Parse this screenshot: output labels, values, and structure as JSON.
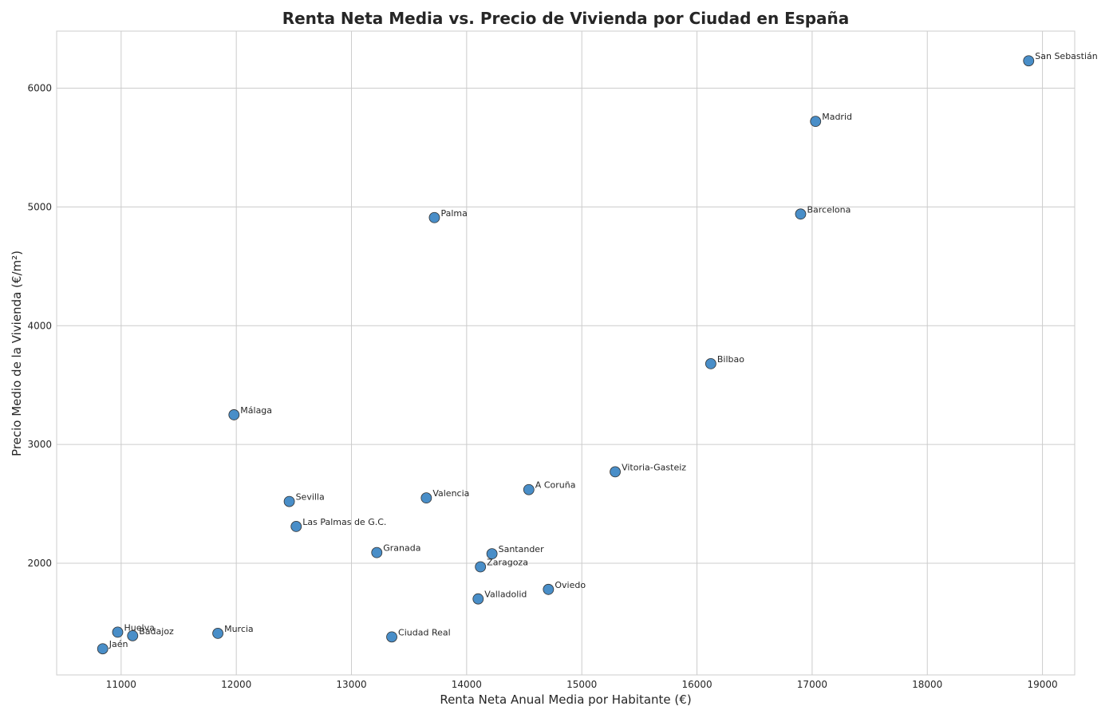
{
  "chart_data": {
    "type": "scatter",
    "title": "Renta Neta Media vs. Precio de Vivienda por Ciudad en España",
    "xlabel": "Renta Neta Anual Media por Habitante (€)",
    "ylabel": "Precio Medio de la Vivienda (€/m²)",
    "xlim": [
      10440,
      19280
    ],
    "ylim": [
      1060,
      6480
    ],
    "xticks": [
      11000,
      12000,
      13000,
      14000,
      15000,
      16000,
      17000,
      18000,
      19000
    ],
    "yticks": [
      2000,
      3000,
      4000,
      5000,
      6000
    ],
    "grid": true,
    "color": "#3f88c5",
    "points": [
      {
        "label": "San Sebastián",
        "x": 18880,
        "y": 6230
      },
      {
        "label": "Madrid",
        "x": 17030,
        "y": 5720
      },
      {
        "label": "Barcelona",
        "x": 16900,
        "y": 4940
      },
      {
        "label": "Palma",
        "x": 13720,
        "y": 4910
      },
      {
        "label": "Bilbao",
        "x": 16120,
        "y": 3680
      },
      {
        "label": "Málaga",
        "x": 11980,
        "y": 3250
      },
      {
        "label": "Vitoria-Gasteiz",
        "x": 15290,
        "y": 2770
      },
      {
        "label": "A Coruña",
        "x": 14540,
        "y": 2620
      },
      {
        "label": "Valencia",
        "x": 13650,
        "y": 2550
      },
      {
        "label": "Sevilla",
        "x": 12460,
        "y": 2520
      },
      {
        "label": "Las Palmas de G.C.",
        "x": 12520,
        "y": 2310
      },
      {
        "label": "Granada",
        "x": 13220,
        "y": 2090
      },
      {
        "label": "Santander",
        "x": 14220,
        "y": 2080
      },
      {
        "label": "Zaragoza",
        "x": 14120,
        "y": 1970
      },
      {
        "label": "Oviedo",
        "x": 14710,
        "y": 1780
      },
      {
        "label": "Valladolid",
        "x": 14100,
        "y": 1700
      },
      {
        "label": "Huelva",
        "x": 10970,
        "y": 1420
      },
      {
        "label": "Badajoz",
        "x": 11100,
        "y": 1390
      },
      {
        "label": "Murcia",
        "x": 11840,
        "y": 1410
      },
      {
        "label": "Ciudad Real",
        "x": 13350,
        "y": 1380
      },
      {
        "label": "Jaén",
        "x": 10840,
        "y": 1280
      }
    ]
  }
}
